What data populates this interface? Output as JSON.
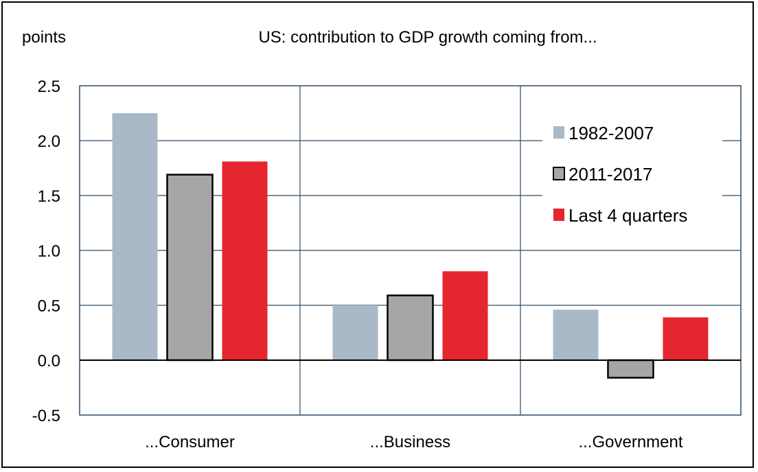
{
  "chart_data": {
    "type": "bar",
    "title": "US: contribution to GDP growth coming from...",
    "ylabel": "points",
    "categories": [
      "...Consumer",
      "...Business",
      "...Government"
    ],
    "series": [
      {
        "name": "1982-2007",
        "values": [
          2.25,
          0.5,
          0.46
        ],
        "color": "#a9b9c7",
        "outlined": false
      },
      {
        "name": "2011-2017",
        "values": [
          1.69,
          0.59,
          -0.16
        ],
        "color": "#a6a6a6",
        "outlined": true
      },
      {
        "name": "Last 4 quarters",
        "values": [
          1.81,
          0.81,
          0.39
        ],
        "color": "#e5262e",
        "outlined": false
      }
    ],
    "ylim": [
      -0.5,
      2.5
    ],
    "yticks": [
      "2.5",
      "2.0",
      "1.5",
      "1.0",
      "0.5",
      "0.0",
      "-0.5"
    ],
    "ytick_values": [
      2.5,
      2.0,
      1.5,
      1.0,
      0.5,
      0.0,
      -0.5
    ],
    "grid": true,
    "legend_position": "top-right",
    "grid_color": "#2e4a66"
  }
}
